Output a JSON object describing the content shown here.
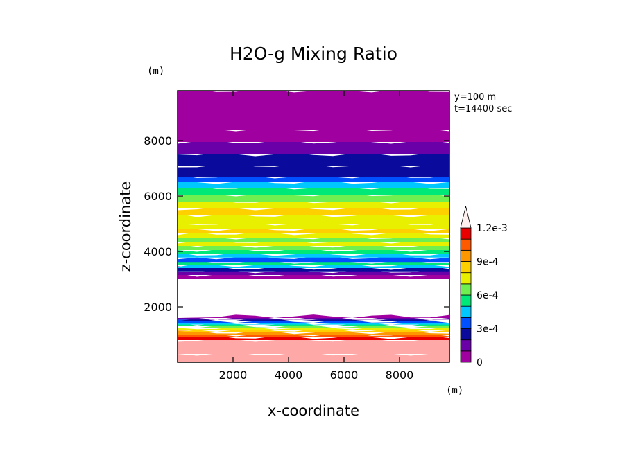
{
  "chart_data": {
    "type": "heatmap",
    "title": "H2O-g Mixing Ratio",
    "xlabel": "x-coordinate",
    "ylabel": "z-coordinate",
    "x_unit": "(m)",
    "y_unit": "(m)",
    "annotations": [
      "y=100  m",
      "t=14400 sec"
    ],
    "xlim": [
      0,
      9800
    ],
    "ylim": [
      0,
      9800
    ],
    "x_ticks": [
      "2000",
      "4000",
      "6000",
      "8000"
    ],
    "x_tick_values": [
      2000,
      4000,
      6000,
      8000
    ],
    "y_ticks": [
      "2000",
      "4000",
      "6000",
      "8000"
    ],
    "y_tick_values": [
      2000,
      4000,
      6000,
      8000
    ],
    "colorbar": {
      "labels": [
        "0",
        "3e-4",
        "6e-4",
        "9e-4",
        "1.2e-3"
      ],
      "label_values": [
        0,
        0.0003,
        0.0006,
        0.0009,
        0.0012
      ],
      "levels": [
        0,
        0.0001,
        0.0002,
        0.0003,
        0.0004,
        0.0005,
        0.0006,
        0.0007,
        0.0008,
        0.0009,
        0.001,
        0.0011,
        0.0012
      ],
      "colors": [
        "#a000a0",
        "#6a00a8",
        "#0a0a9c",
        "#0050ff",
        "#00c8ff",
        "#00e878",
        "#70f050",
        "#e8f000",
        "#ffd000",
        "#ff9800",
        "#ff5a00",
        "#e80000",
        "#ffa8a8",
        "#fff0f0"
      ],
      "extend": "max"
    },
    "layers": [
      {
        "z_bottom": 0,
        "z_top": 300,
        "value": 0.00125
      },
      {
        "z_bottom": 300,
        "z_top": 800,
        "value": 0.00125
      },
      {
        "z_bottom": 800,
        "z_top": 900,
        "value": 0.00115
      },
      {
        "z_bottom": 900,
        "z_top": 1000,
        "value": 0.00105
      },
      {
        "z_bottom": 1000,
        "z_top": 1080,
        "value": 0.00095
      },
      {
        "z_bottom": 1080,
        "z_top": 1160,
        "value": 0.00085
      },
      {
        "z_bottom": 1160,
        "z_top": 1240,
        "value": 0.00075
      },
      {
        "z_bottom": 1240,
        "z_top": 1300,
        "value": 0.00065
      },
      {
        "z_bottom": 1300,
        "z_top": 1360,
        "value": 0.00055
      },
      {
        "z_bottom": 1360,
        "z_top": 1420,
        "value": 0.00045
      },
      {
        "z_bottom": 1420,
        "z_top": 1480,
        "value": 0.00035
      },
      {
        "z_bottom": 1480,
        "z_top": 1540,
        "value": 0.00025
      },
      {
        "z_bottom": 1540,
        "z_top": 1600,
        "value": 0.00015
      },
      {
        "z_bottom": 1600,
        "z_top": 1660,
        "value": 5e-05
      },
      {
        "z_bottom": 3000,
        "z_top": 3150,
        "value": 5e-05
      },
      {
        "z_bottom": 3150,
        "z_top": 3280,
        "value": 0.00015
      },
      {
        "z_bottom": 3280,
        "z_top": 3400,
        "value": 0.00025
      },
      {
        "z_bottom": 3400,
        "z_top": 3500,
        "value": 0.00045
      },
      {
        "z_bottom": 3500,
        "z_top": 3620,
        "value": 0.00055
      },
      {
        "z_bottom": 3620,
        "z_top": 3780,
        "value": 0.00035
      },
      {
        "z_bottom": 3780,
        "z_top": 3900,
        "value": 0.00045
      },
      {
        "z_bottom": 3900,
        "z_top": 4050,
        "value": 0.00055
      },
      {
        "z_bottom": 4050,
        "z_top": 4200,
        "value": 0.00065
      },
      {
        "z_bottom": 4200,
        "z_top": 4350,
        "value": 0.00075
      },
      {
        "z_bottom": 4350,
        "z_top": 4500,
        "value": 0.00065
      },
      {
        "z_bottom": 4500,
        "z_top": 4650,
        "value": 0.00075
      },
      {
        "z_bottom": 4650,
        "z_top": 4800,
        "value": 0.00085
      },
      {
        "z_bottom": 4800,
        "z_top": 5000,
        "value": 0.00075
      },
      {
        "z_bottom": 5000,
        "z_top": 5300,
        "value": 0.00075
      },
      {
        "z_bottom": 5300,
        "z_top": 5550,
        "value": 0.00085
      },
      {
        "z_bottom": 5550,
        "z_top": 5800,
        "value": 0.00075
      },
      {
        "z_bottom": 5800,
        "z_top": 6050,
        "value": 0.00065
      },
      {
        "z_bottom": 6050,
        "z_top": 6300,
        "value": 0.00055
      },
      {
        "z_bottom": 6300,
        "z_top": 6500,
        "value": 0.00045
      },
      {
        "z_bottom": 6500,
        "z_top": 6700,
        "value": 0.00035
      },
      {
        "z_bottom": 6700,
        "z_top": 7100,
        "value": 0.00025
      },
      {
        "z_bottom": 7100,
        "z_top": 7500,
        "value": 0.00025
      },
      {
        "z_bottom": 7500,
        "z_top": 7950,
        "value": 0.00015
      },
      {
        "z_bottom": 7950,
        "z_top": 8400,
        "value": 5e-05
      },
      {
        "z_bottom": 8400,
        "z_top": 9800,
        "value": 5e-05
      }
    ]
  }
}
